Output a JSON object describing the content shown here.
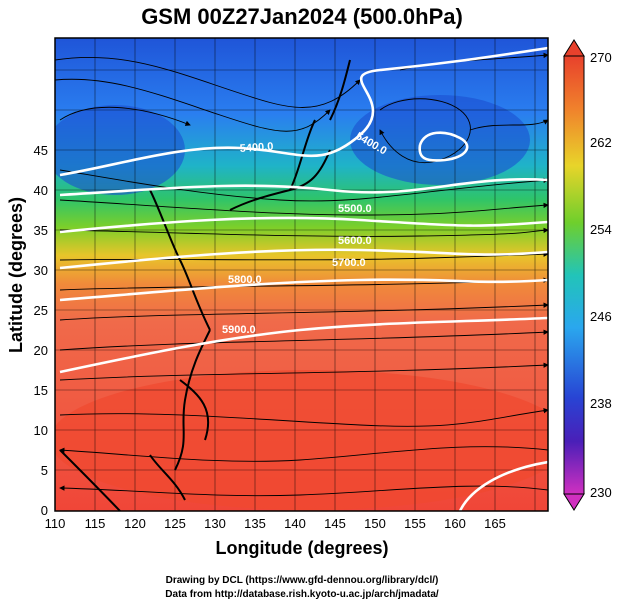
{
  "title": "GSM 00Z27Jan2024 (500.0hPa)",
  "axes": {
    "xlabel": "Longitude (degrees)",
    "ylabel": "Latitude  (degrees)",
    "x_ticks": [
      "110",
      "115",
      "120",
      "125",
      "130",
      "135",
      "140",
      "145",
      "150",
      "155",
      "160",
      "165"
    ],
    "y_ticks": [
      "0",
      "5",
      "10",
      "15",
      "20",
      "25",
      "30",
      "35",
      "40",
      "45"
    ]
  },
  "colorbar": {
    "ticks": [
      "270",
      "262",
      "254",
      "246",
      "238",
      "230"
    ]
  },
  "contour_labels": [
    {
      "id": "c1",
      "text": "5400.0"
    },
    {
      "id": "c2",
      "text": "5400.0"
    },
    {
      "id": "c3",
      "text": "5500.0"
    },
    {
      "id": "c4",
      "text": "5600.0"
    },
    {
      "id": "c5",
      "text": "5700.0"
    },
    {
      "id": "c6",
      "text": "5800.0"
    },
    {
      "id": "c7",
      "text": "5900.0"
    }
  ],
  "credits": {
    "line1": "Drawing by DCL (https://www.gfd-dennou.org/library/dcl/)",
    "line2": "Data from http://database.rish.kyoto-u.ac.jp/arch/jmadata/"
  }
}
